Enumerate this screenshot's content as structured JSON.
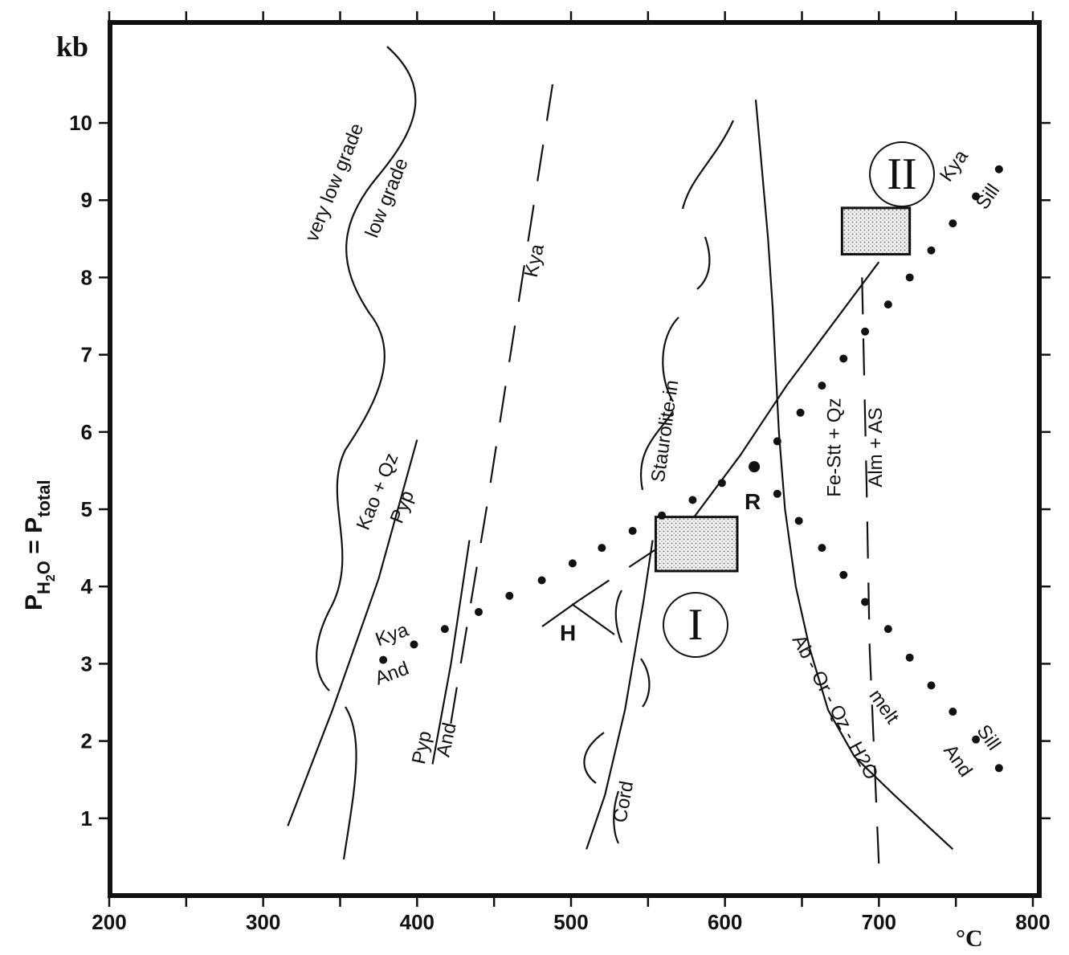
{
  "chart_data": {
    "type": "line",
    "xlabel": "°C",
    "ylabel_main": "P",
    "ylabel_sub1": "H",
    "ylabel_sub2": "2",
    "ylabel_sub3": "O",
    "ylabel_eq": " = P",
    "ylabel_sub4": "total",
    "yunit": "kb",
    "xlim": [
      200,
      800
    ],
    "ylim": [
      0,
      11.3
    ],
    "x_ticks": [
      200,
      300,
      400,
      500,
      600,
      700,
      800
    ],
    "y_ticks": [
      1,
      2,
      3,
      4,
      5,
      6,
      7,
      8,
      9,
      10
    ],
    "grid": false,
    "series": [
      {
        "name": "Ab - Or - Qz - H2O melt",
        "style": "thick",
        "points": [
          [
            620,
            10.3
          ],
          [
            624,
            9.4
          ],
          [
            628,
            8.5
          ],
          [
            631,
            7.6
          ],
          [
            633,
            6.8
          ],
          [
            635,
            6.0
          ],
          [
            639,
            5.0
          ],
          [
            646,
            4.0
          ],
          [
            655,
            3.2
          ],
          [
            667,
            2.4
          ],
          [
            684,
            1.8
          ],
          [
            710,
            1.3
          ],
          [
            748,
            0.6
          ]
        ]
      },
      {
        "name": "Kao + Qz / Pyp",
        "style": "solid",
        "points": [
          [
            316,
            0.9
          ],
          [
            345,
            2.4
          ],
          [
            375,
            4.1
          ],
          [
            400,
            5.9
          ]
        ]
      },
      {
        "name": "Pyp / And",
        "style": "solid",
        "points": [
          [
            410,
            1.7
          ],
          [
            422,
            3.0
          ],
          [
            434,
            4.6
          ]
        ]
      },
      {
        "name": "Cord",
        "style": "solid",
        "points": [
          [
            510,
            0.6
          ],
          [
            522,
            1.3
          ],
          [
            535,
            2.4
          ],
          [
            547,
            3.8
          ],
          [
            553,
            4.6
          ]
        ]
      },
      {
        "name": "Fe-Stt + Qz / Alm + AS",
        "style": "dashed",
        "points": [
          [
            689,
            8.0
          ],
          [
            692,
            5.3
          ],
          [
            694,
            3.2
          ],
          [
            700,
            0.4
          ]
        ]
      },
      {
        "name": "Kya (dashed)",
        "style": "dashed",
        "points": [
          [
            488,
            10.5
          ],
          [
            470,
            8.2
          ],
          [
            445,
            5.0
          ],
          [
            420,
            2.0
          ]
        ]
      },
      {
        "name": "pressure-temperature path",
        "style": "solid",
        "points": [
          [
            580,
            4.9
          ],
          [
            610,
            5.7
          ],
          [
            640,
            6.6
          ],
          [
            670,
            7.4
          ],
          [
            700,
            8.2
          ]
        ]
      }
    ],
    "point_labels": [
      {
        "text": "very low grade",
        "x": 350,
        "y": 9.2,
        "rotation": -68
      },
      {
        "text": "low grade",
        "x": 384,
        "y": 9.0,
        "rotation": -68
      },
      {
        "text": "Kya",
        "x": 480,
        "y": 8.2,
        "rotation": -78
      },
      {
        "text": "Staurolite-in",
        "x": 565,
        "y": 6.0,
        "rotation": -82
      },
      {
        "text": "Kao + Qz",
        "x": 378,
        "y": 5.2,
        "rotation": -68
      },
      {
        "text": "Pyp",
        "x": 394,
        "y": 5.0,
        "rotation": -68
      },
      {
        "text": "Kya",
        "x": 385,
        "y": 3.3,
        "rotation": -20
      },
      {
        "text": "And",
        "x": 385,
        "y": 2.8,
        "rotation": -20
      },
      {
        "text": "Pyp",
        "x": 407,
        "y": 1.9,
        "rotation": -78
      },
      {
        "text": "And",
        "x": 423,
        "y": 2.0,
        "rotation": -78
      },
      {
        "text": "Cord",
        "x": 538,
        "y": 1.2,
        "rotation": -80
      },
      {
        "text": "H",
        "x": 498,
        "y": 3.3,
        "rotation": 0
      },
      {
        "text": "R",
        "x": 618,
        "y": 5.0,
        "rotation": 0
      },
      {
        "text": "Fe-Stt + Qz",
        "x": 675,
        "y": 5.8,
        "rotation": -90
      },
      {
        "text": "Alm + AS",
        "x": 702,
        "y": 5.8,
        "rotation": -90
      },
      {
        "text": "Kya",
        "x": 752,
        "y": 9.4,
        "rotation": -55
      },
      {
        "text": "Sill",
        "x": 774,
        "y": 9.0,
        "rotation": -55
      },
      {
        "text": "Sill",
        "x": 768,
        "y": 2.0,
        "rotation": 55
      },
      {
        "text": "And",
        "x": 748,
        "y": 1.7,
        "rotation": 55
      },
      {
        "text": "melt",
        "x": 700,
        "y": 2.4,
        "rotation": 55
      },
      {
        "text": "Ab - Or - Qz - H2O",
        "x": 668,
        "y": 2.4,
        "rotation": 62
      }
    ],
    "regions": [
      {
        "name": "I",
        "x_range": [
          555,
          608
        ],
        "y_range": [
          4.2,
          4.9
        ]
      },
      {
        "name": "II",
        "x_range": [
          676,
          720
        ],
        "y_range": [
          8.3,
          8.9
        ]
      }
    ],
    "region_labels": [
      "I",
      "II"
    ],
    "dotted_series": {
      "name": "Kya / And / Sill (aluminosilicate triple point)",
      "points": [
        [
          378,
          3.05
        ],
        [
          398,
          3.25
        ],
        [
          418,
          3.45
        ],
        [
          440,
          3.67
        ],
        [
          460,
          3.88
        ],
        [
          481,
          4.08
        ],
        [
          501,
          4.3
        ],
        [
          520,
          4.5
        ],
        [
          540,
          4.72
        ],
        [
          559,
          4.92
        ],
        [
          579,
          5.12
        ],
        [
          598,
          5.34
        ],
        [
          618,
          5.55
        ],
        [
          634,
          5.88
        ],
        [
          649,
          6.25
        ],
        [
          663,
          6.6
        ],
        [
          677,
          6.95
        ],
        [
          691,
          7.3
        ],
        [
          706,
          7.65
        ],
        [
          720,
          8.0
        ],
        [
          734,
          8.35
        ],
        [
          748,
          8.7
        ],
        [
          763,
          9.05
        ],
        [
          778,
          9.4
        ],
        [
          634,
          5.2
        ],
        [
          648,
          4.85
        ],
        [
          663,
          4.5
        ],
        [
          677,
          4.15
        ],
        [
          691,
          3.8
        ],
        [
          706,
          3.45
        ],
        [
          720,
          3.08
        ],
        [
          734,
          2.72
        ],
        [
          748,
          2.38
        ],
        [
          763,
          2.02
        ],
        [
          778,
          1.65
        ]
      ]
    },
    "marked_points": [
      {
        "label": "R",
        "x": 619,
        "y": 5.55
      }
    ]
  }
}
